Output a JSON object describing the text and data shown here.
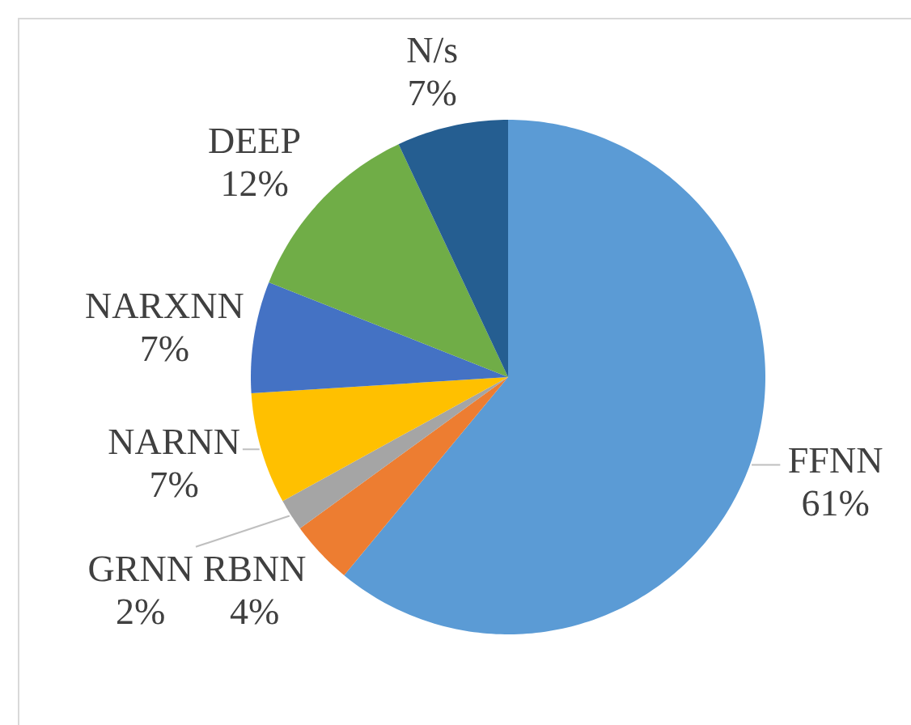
{
  "chart_data": {
    "type": "pie",
    "categories": [
      "FFNN",
      "RBNN",
      "GRNN",
      "NARNN",
      "NARXNN",
      "DEEP",
      "N/s"
    ],
    "values": [
      61,
      4,
      2,
      7,
      7,
      12,
      7
    ],
    "colors": [
      "#5b9bd5",
      "#ed7d31",
      "#a5a5a5",
      "#ffc000",
      "#4472c4",
      "#70ad47",
      "#255e91"
    ],
    "value_labels": [
      "61%",
      "4%",
      "2%",
      "7%",
      "7%",
      "12%",
      "7%"
    ]
  }
}
